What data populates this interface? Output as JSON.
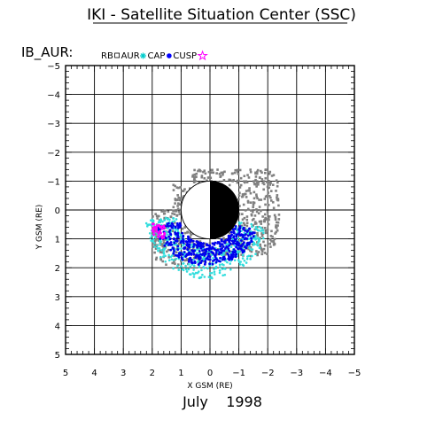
{
  "page": {
    "title": "IKI - Satellite Situation Center (SSC)",
    "spacecraft": "IB_AUR:",
    "date": "July    1998"
  },
  "chart_data": {
    "type": "scatter",
    "title": "IKI - Satellite Situation Center (SSC)",
    "xlabel": "X GSM (RE)",
    "ylabel": "Y GSM (RE)",
    "xlim": [
      5,
      -5
    ],
    "ylim": [
      -5,
      5
    ],
    "x_ticks": [
      "5",
      "4",
      "3",
      "2",
      "1",
      "0",
      "−1",
      "−2",
      "−3",
      "−4",
      "−5"
    ],
    "y_ticks": [
      "−5",
      "−4",
      "−3",
      "−2",
      "−1",
      "0",
      "1",
      "2",
      "3",
      "4",
      "5"
    ],
    "grid": true,
    "legend_position": "top-left",
    "legend": [
      {
        "label": "RB",
        "marker": "none",
        "color": "#000000"
      },
      {
        "label": "AUR",
        "marker": "square",
        "color": "#000000"
      },
      {
        "label": "CAP",
        "marker": "asterisk",
        "color": "#00cccc"
      },
      {
        "label": "CUSP",
        "marker": "dot",
        "color": "#0000ff"
      },
      {
        "label": "",
        "marker": "star",
        "color": "#ff00ff"
      }
    ],
    "earth": {
      "radius": 1,
      "night_side": "x<0"
    },
    "colors": {
      "rb": "#808080",
      "cap": "#33dddd",
      "cusp": "#0000ee",
      "magenta": "#ff00ff"
    },
    "regions": [
      {
        "key": "rb",
        "comment": "grey trajectory band",
        "x_range": [
          -2.4,
          2.0
        ],
        "y_range": [
          -1.4,
          1.9
        ]
      },
      {
        "key": "cap",
        "comment": "cyan, southern/sunward",
        "x_range": [
          -2.0,
          1.8
        ],
        "y_range": [
          0.2,
          2.5
        ]
      },
      {
        "key": "cusp",
        "comment": "blue, near earth",
        "x_range": [
          -1.6,
          1.9
        ],
        "y_range": [
          0.5,
          2.0
        ]
      },
      {
        "key": "magenta",
        "comment": "small magenta cluster",
        "x_range": [
          1.6,
          2.0
        ],
        "y_range": [
          0.5,
          1.0
        ]
      }
    ]
  }
}
